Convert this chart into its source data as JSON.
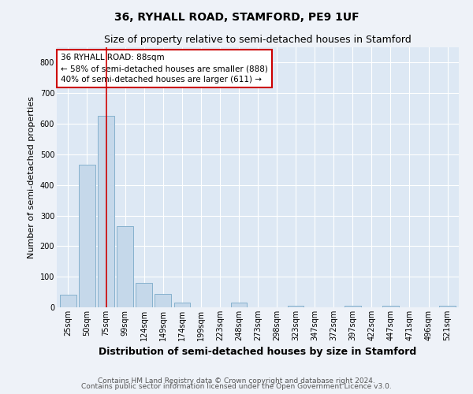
{
  "title": "36, RYHALL ROAD, STAMFORD, PE9 1UF",
  "subtitle": "Size of property relative to semi-detached houses in Stamford",
  "xlabel": "Distribution of semi-detached houses by size in Stamford",
  "ylabel": "Number of semi-detached properties",
  "footer_line1": "Contains HM Land Registry data © Crown copyright and database right 2024.",
  "footer_line2": "Contains public sector information licensed under the Open Government Licence v3.0.",
  "annotation_line1": "36 RYHALL ROAD: 88sqm",
  "annotation_line2": "← 58% of semi-detached houses are smaller (888)",
  "annotation_line3": "40% of semi-detached houses are larger (611) →",
  "bar_labels": [
    "25sqm",
    "50sqm",
    "75sqm",
    "99sqm",
    "124sqm",
    "149sqm",
    "174sqm",
    "199sqm",
    "223sqm",
    "248sqm",
    "273sqm",
    "298sqm",
    "323sqm",
    "347sqm",
    "372sqm",
    "397sqm",
    "422sqm",
    "447sqm",
    "471sqm",
    "496sqm",
    "521sqm"
  ],
  "bar_values": [
    40,
    465,
    625,
    265,
    80,
    45,
    15,
    0,
    0,
    15,
    0,
    0,
    5,
    0,
    0,
    5,
    0,
    5,
    0,
    0,
    5
  ],
  "bar_color": "#c5d8ea",
  "bar_edge_color": "#7aaac8",
  "bar_width": 0.85,
  "vline_x": 2.0,
  "vline_color": "#cc0000",
  "ylim": [
    0,
    850
  ],
  "yticks": [
    0,
    100,
    200,
    300,
    400,
    500,
    600,
    700,
    800
  ],
  "bg_color": "#eef2f8",
  "plot_bg_color": "#dde8f4",
  "grid_color": "#ffffff",
  "title_fontsize": 10,
  "subtitle_fontsize": 9,
  "xlabel_fontsize": 9,
  "ylabel_fontsize": 8,
  "tick_fontsize": 7,
  "annotation_fontsize": 7.5,
  "footer_fontsize": 6.5
}
